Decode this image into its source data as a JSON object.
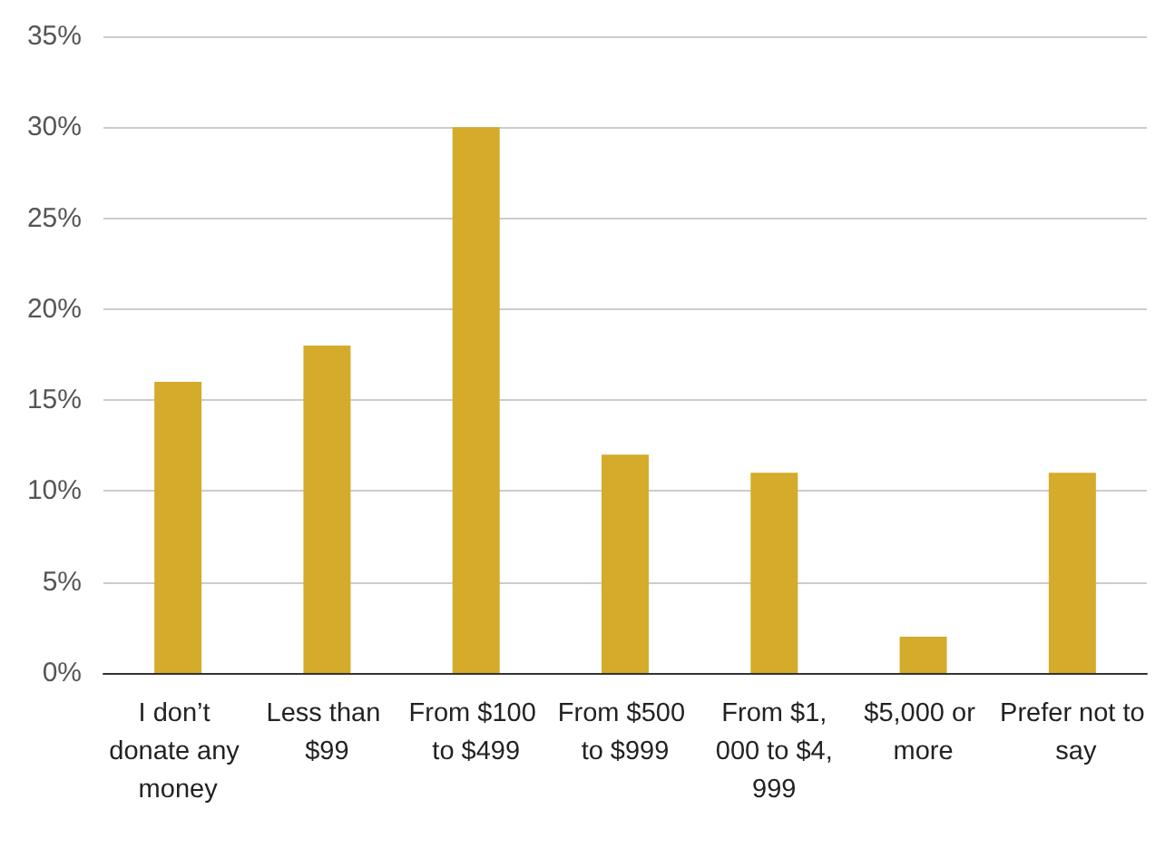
{
  "chart_data": {
    "type": "bar",
    "categories": [
      "I don’t donate any money",
      "Less than $99",
      "From $100 to $499",
      "From $500 to $999",
      "From $1,000 to $4,999",
      "$5,000 or more",
      "Prefer not to say"
    ],
    "values": [
      16,
      18,
      30,
      12,
      11,
      2,
      11
    ],
    "color": "#d4ab2a",
    "ylim": [
      0,
      35
    ],
    "yticks": [
      {
        "value": 0,
        "label": "0%"
      },
      {
        "value": 5,
        "label": "5%"
      },
      {
        "value": 10,
        "label": "10%"
      },
      {
        "value": 15,
        "label": "15%"
      },
      {
        "value": 20,
        "label": "20%"
      },
      {
        "value": 25,
        "label": "25%"
      },
      {
        "value": 30,
        "label": "30%"
      },
      {
        "value": 35,
        "label": "35%"
      }
    ],
    "grid": "y"
  }
}
